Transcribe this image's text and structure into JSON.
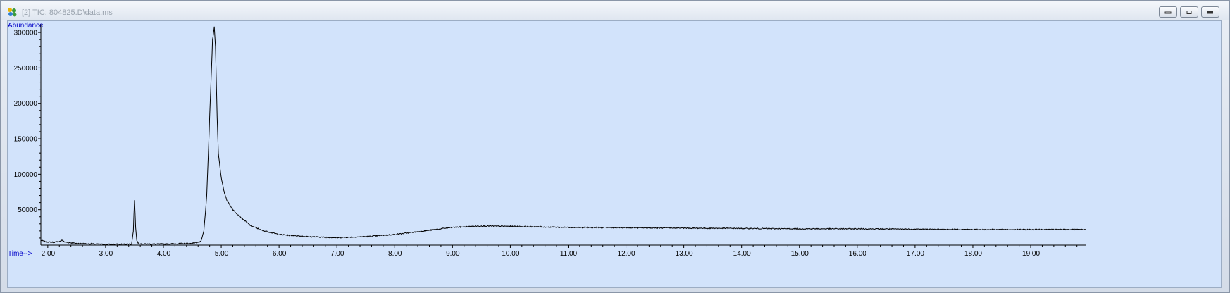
{
  "window": {
    "title": "[2] TIC: 804825.D\\data.ms",
    "icon": "msd-chemstation-icon",
    "buttons": [
      "minimize",
      "restore",
      "close"
    ]
  },
  "colors": {
    "plot_background": "#d2e3fb",
    "trace": "#000000",
    "axis_title": "#0000c8"
  },
  "chart_data": {
    "type": "line",
    "ylabel": "Abundance",
    "xlabel": "Time-->",
    "xlim": [
      1.88,
      19.95
    ],
    "ylim": [
      0,
      312000
    ],
    "x_ticks": [
      2,
      3,
      4,
      5,
      6,
      7,
      8,
      9,
      10,
      11,
      12,
      13,
      14,
      15,
      16,
      17,
      18,
      19
    ],
    "x_tick_labels": [
      "2.00",
      "3.00",
      "4.00",
      "5.00",
      "6.00",
      "7.00",
      "8.00",
      "9.00",
      "10.00",
      "11.00",
      "12.00",
      "13.00",
      "14.00",
      "15.00",
      "16.00",
      "17.00",
      "18.00",
      "19.00"
    ],
    "y_ticks": [
      50000,
      100000,
      150000,
      200000,
      250000,
      300000
    ],
    "y_tick_labels": [
      "50000",
      "100000",
      "150000",
      "200000",
      "250000",
      "300000"
    ],
    "grid": false,
    "series": [
      {
        "x": [
          1.88,
          1.95,
          2.0,
          2.1,
          2.2,
          2.25,
          2.3,
          2.5,
          3.0,
          3.45,
          3.48,
          3.5,
          3.52,
          3.54,
          3.56,
          3.6,
          3.7,
          4.0,
          4.5,
          4.65,
          4.7,
          4.75,
          4.8,
          4.85,
          4.88,
          4.9,
          4.93,
          4.95,
          5.0,
          5.05,
          5.1,
          5.2,
          5.3,
          5.4,
          5.5,
          5.7,
          6.0,
          6.5,
          7.0,
          7.5,
          8.0,
          8.5,
          9.0,
          9.5,
          10.0,
          11.0,
          12.0,
          13.0,
          14.0,
          15.0,
          16.0,
          17.0,
          18.0,
          19.0,
          19.95
        ],
        "y": [
          7000,
          5000,
          4500,
          4000,
          5000,
          7000,
          4000,
          2500,
          1000,
          1500,
          20000,
          64000,
          25000,
          7000,
          3000,
          2000,
          1500,
          1500,
          2500,
          5000,
          20000,
          70000,
          180000,
          290000,
          308000,
          280000,
          180000,
          130000,
          95000,
          75000,
          63000,
          50000,
          42000,
          35000,
          28000,
          21000,
          15000,
          12000,
          10500,
          12000,
          15000,
          20000,
          25000,
          27000,
          26500,
          25000,
          24500,
          24000,
          23500,
          23000,
          23000,
          22500,
          22000,
          22000,
          22000
        ]
      }
    ]
  }
}
